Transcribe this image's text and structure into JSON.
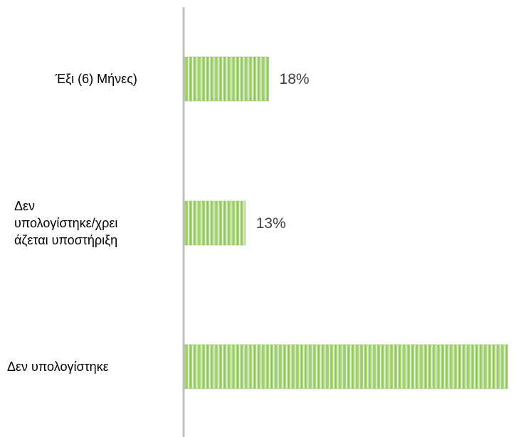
{
  "chart_data": {
    "type": "bar",
    "orientation": "horizontal",
    "categories": [
      [
        "Έξι (6) Μήνες)"
      ],
      [
        "Δεν",
        "υπολογίστηκε/χρει",
        "άζεται υποστήριξη"
      ],
      [
        "Δεν υπολογίστηκε"
      ]
    ],
    "values": [
      18,
      13,
      69
    ],
    "data_labels": [
      "18%",
      "13%",
      ""
    ],
    "xlim": [
      0,
      70
    ],
    "grid": false,
    "legend": "none",
    "bar_color": "#8cc152",
    "axis_color": "#bfbfbf"
  }
}
